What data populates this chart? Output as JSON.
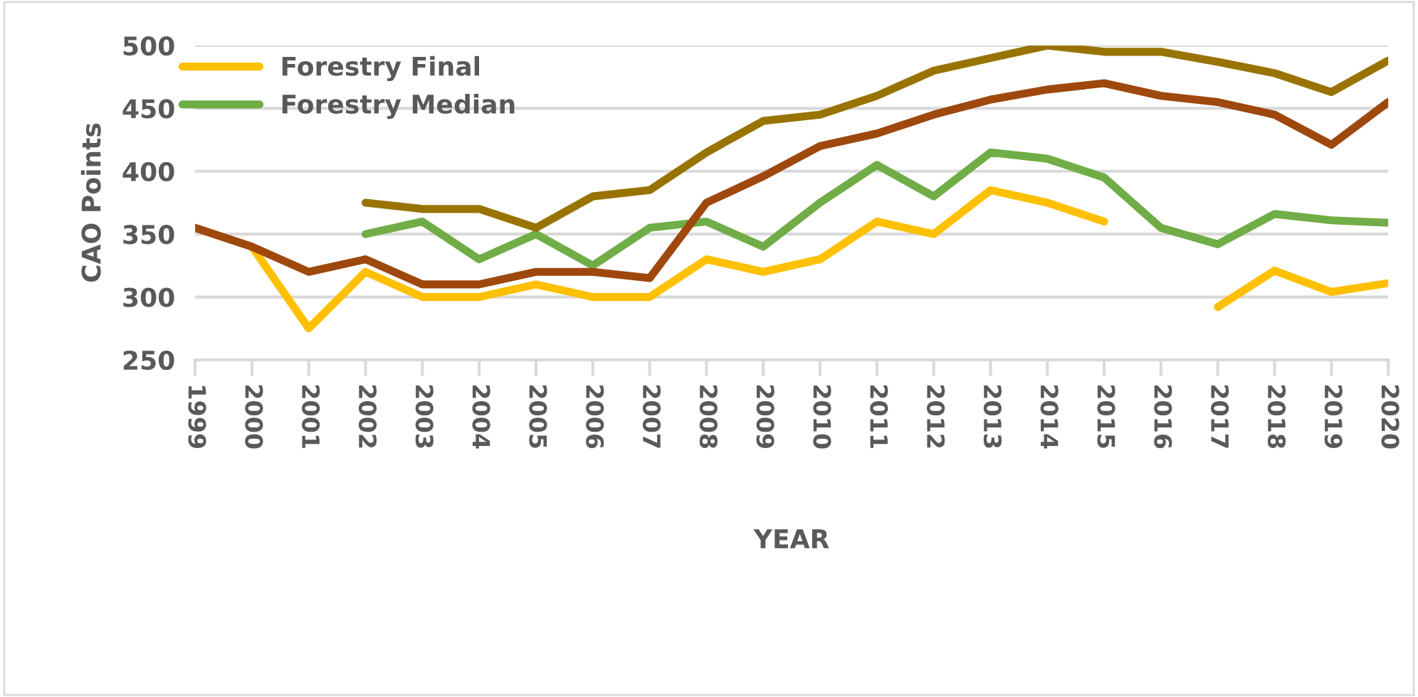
{
  "chart_data": {
    "type": "line",
    "xlabel": "YEAR",
    "ylabel": "CAO Points",
    "categories": [
      "1999",
      "2000",
      "2001",
      "2002",
      "2003",
      "2004",
      "2005",
      "2006",
      "2007",
      "2008",
      "2009",
      "2010",
      "2011",
      "2012",
      "2013",
      "2014",
      "2015",
      "2016",
      "2017",
      "2018",
      "2019",
      "2020"
    ],
    "series": [
      {
        "name": "Forestry Final",
        "color": "#ffc000",
        "values": [
          null,
          340,
          275,
          320,
          300,
          300,
          310,
          300,
          300,
          330,
          320,
          330,
          360,
          350,
          385,
          375,
          360,
          null,
          292,
          321,
          304,
          311
        ]
      },
      {
        "name": "Forestry Median",
        "color": "#70ad47",
        "values": [
          null,
          null,
          null,
          350,
          360,
          330,
          350,
          325,
          355,
          360,
          340,
          375,
          405,
          380,
          415,
          410,
          395,
          355,
          342,
          366,
          361,
          359
        ]
      },
      {
        "color": "#9e480e",
        "values": [
          355,
          340,
          320,
          330,
          310,
          310,
          320,
          320,
          315,
          375,
          396,
          420,
          430,
          445,
          457,
          465,
          470,
          460,
          455,
          445,
          421,
          455
        ]
      },
      {
        "color": "#997300",
        "values": [
          null,
          null,
          null,
          375,
          370,
          370,
          355,
          380,
          385,
          415,
          440,
          445,
          460,
          480,
          490,
          500,
          495,
          495,
          487,
          478,
          463,
          488
        ]
      }
    ],
    "ylim": [
      250,
      500
    ],
    "yticks": [
      250,
      300,
      350,
      400,
      450,
      500
    ],
    "grid": "y",
    "legend": "top left",
    "line_style": "solid",
    "marker": "none"
  }
}
